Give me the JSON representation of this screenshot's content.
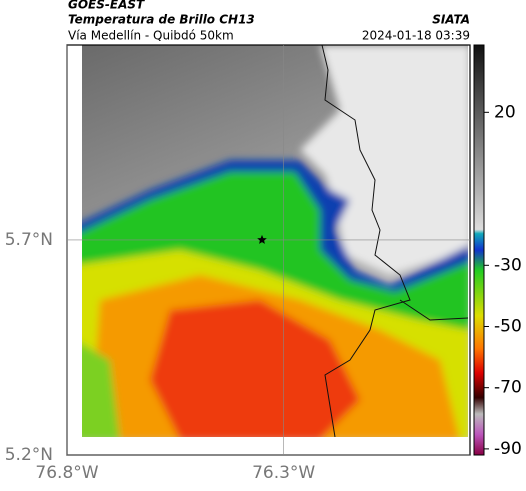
{
  "header": {
    "source": "GOES-EAST",
    "title": "Temperatura de Brillo CH13",
    "org": "SIATA",
    "subtitle": "Vía Medellín - Quibdó 50km",
    "datetime": "2024-01-18 03:39"
  },
  "map": {
    "lon_lim": [
      -76.8,
      -75.87
    ],
    "lat_lim": [
      5.2,
      6.153
    ],
    "lon_ticks": [
      {
        "value": -76.8,
        "label": "76.8°W"
      },
      {
        "value": -76.3,
        "label": "76.3°W"
      }
    ],
    "lat_ticks": [
      {
        "value": 5.2,
        "label": "5.2°N"
      },
      {
        "value": 5.7,
        "label": "5.7°N"
      }
    ],
    "marker": {
      "lon": -76.35,
      "lat": 5.7
    }
  },
  "colorbar": {
    "lim": [
      -92,
      42
    ],
    "ticks": [
      20,
      -30,
      -50,
      -70,
      -90
    ]
  }
}
